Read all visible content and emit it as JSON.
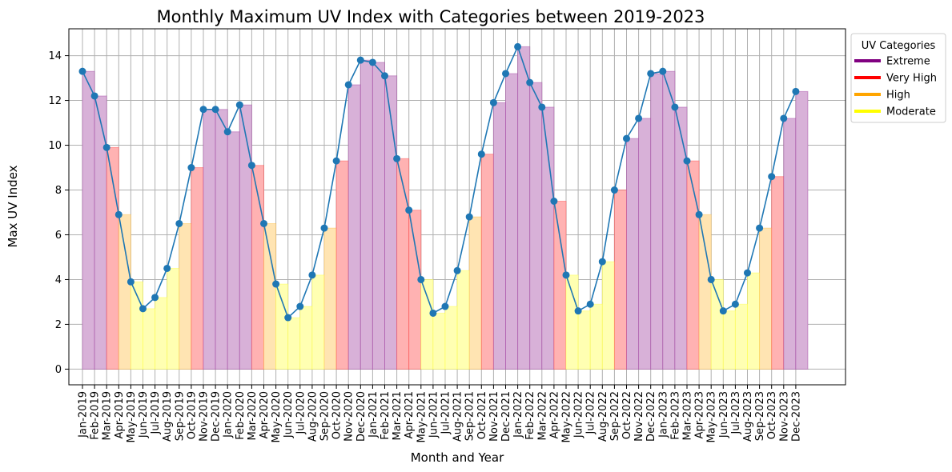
{
  "chart_data": {
    "type": "bar",
    "title": "Monthly Maximum UV Index with Categories between 2019-2023",
    "xlabel": "Month and Year",
    "ylabel": "Max UV Index",
    "ylim": [
      -0.7,
      15.2
    ],
    "yticks": [
      0,
      2,
      4,
      6,
      8,
      10,
      12,
      14
    ],
    "grid": true,
    "legend": {
      "title": "UV Categories",
      "placement": "outside-top-right",
      "entries": [
        {
          "label": "Extreme",
          "color": "#800080"
        },
        {
          "label": "Very High",
          "color": "#ff0000"
        },
        {
          "label": "High",
          "color": "#ffa500"
        },
        {
          "label": "Moderate",
          "color": "#ffff00"
        }
      ]
    },
    "line_color": "#1f77b4",
    "bar_fill_colors": {
      "Extreme": "#d8b1d8",
      "Very High": "#ffb2b2",
      "High": "#ffe4b2",
      "Moderate": "#ffffb2"
    },
    "categories": [
      "Jan-2019",
      "Feb-2019",
      "Mar-2019",
      "Apr-2019",
      "May-2019",
      "Jun-2019",
      "Jul-2019",
      "Aug-2019",
      "Sep-2019",
      "Oct-2019",
      "Nov-2019",
      "Dec-2019",
      "Jan-2020",
      "Feb-2020",
      "Mar-2020",
      "Apr-2020",
      "May-2020",
      "Jun-2020",
      "Jul-2020",
      "Aug-2020",
      "Sep-2020",
      "Oct-2020",
      "Nov-2020",
      "Dec-2020",
      "Jan-2021",
      "Feb-2021",
      "Mar-2021",
      "Apr-2021",
      "May-2021",
      "Jun-2021",
      "Jul-2021",
      "Aug-2021",
      "Sep-2021",
      "Oct-2021",
      "Nov-2021",
      "Dec-2021",
      "Jan-2022",
      "Feb-2022",
      "Mar-2022",
      "Apr-2022",
      "May-2022",
      "Jun-2022",
      "Jul-2022",
      "Aug-2022",
      "Sep-2022",
      "Oct-2022",
      "Nov-2022",
      "Dec-2022",
      "Jan-2023",
      "Feb-2023",
      "Mar-2023",
      "Apr-2023",
      "May-2023",
      "Jun-2023",
      "Jul-2023",
      "Aug-2023",
      "Sep-2023",
      "Oct-2023",
      "Nov-2023",
      "Dec-2023"
    ],
    "values": [
      13.3,
      12.2,
      9.9,
      6.9,
      3.9,
      2.7,
      3.2,
      4.5,
      6.5,
      9.0,
      11.6,
      11.6,
      10.6,
      11.8,
      9.1,
      6.5,
      3.8,
      2.3,
      2.8,
      4.2,
      6.3,
      9.3,
      12.7,
      13.8,
      13.7,
      13.1,
      9.4,
      7.1,
      4.0,
      2.5,
      2.8,
      4.4,
      6.8,
      9.6,
      11.9,
      13.2,
      14.4,
      12.8,
      11.7,
      7.5,
      4.2,
      2.6,
      2.9,
      4.8,
      8.0,
      10.3,
      11.2,
      13.2,
      13.3,
      11.7,
      9.3,
      6.9,
      4.0,
      2.6,
      2.9,
      4.3,
      6.3,
      8.6,
      11.2,
      12.4
    ],
    "bar_categories": [
      "Extreme",
      "Extreme",
      "Very High",
      "High",
      "Moderate",
      "Moderate",
      "Moderate",
      "Moderate",
      "High",
      "Very High",
      "Extreme",
      "Extreme",
      "Extreme",
      "Extreme",
      "Very High",
      "High",
      "Moderate",
      "Moderate",
      "Moderate",
      "Moderate",
      "High",
      "Very High",
      "Extreme",
      "Extreme",
      "Extreme",
      "Extreme",
      "Very High",
      "Very High",
      "Moderate",
      "Moderate",
      "Moderate",
      "Moderate",
      "High",
      "Very High",
      "Extreme",
      "Extreme",
      "Extreme",
      "Extreme",
      "Extreme",
      "Very High",
      "Moderate",
      "Moderate",
      "Moderate",
      "Moderate",
      "Very High",
      "Extreme",
      "Extreme",
      "Extreme",
      "Extreme",
      "Extreme",
      "Very High",
      "High",
      "Moderate",
      "Moderate",
      "Moderate",
      "Moderate",
      "High",
      "Very High",
      "Extreme",
      "Extreme"
    ]
  }
}
